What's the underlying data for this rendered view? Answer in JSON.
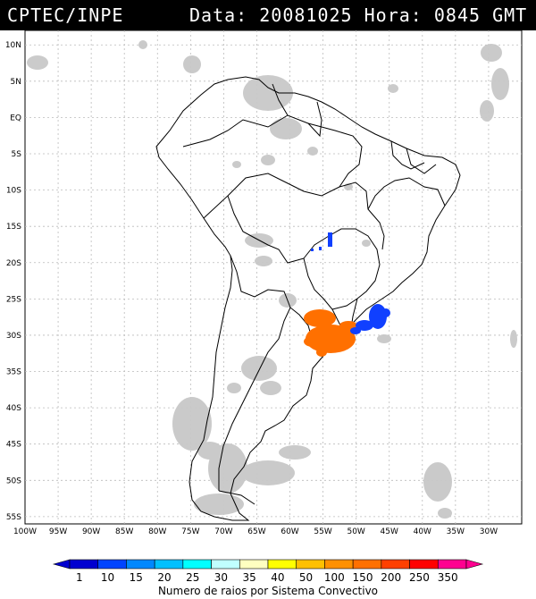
{
  "header": {
    "left": "CPTEC/INPE",
    "right": "Data: 20081025 Hora: 0845 GMT"
  },
  "map": {
    "region": "South America",
    "lon_range": [
      -100,
      -25
    ],
    "lat_range": [
      -56,
      12
    ],
    "lat_ticks": [
      "10N",
      "5N",
      "EQ",
      "5S",
      "10S",
      "15S",
      "20S",
      "25S",
      "30S",
      "35S",
      "40S",
      "45S",
      "50S",
      "55S"
    ],
    "lon_ticks": [
      "100W",
      "95W",
      "90W",
      "85W",
      "80W",
      "75W",
      "70W",
      "65W",
      "60W",
      "55W",
      "50W",
      "45W",
      "40W",
      "35W",
      "30W"
    ],
    "cloud_color": "#c8c8c8",
    "features": [
      {
        "name": "lightning-cluster-south-brazil",
        "color": "#ff7000",
        "value": "200"
      },
      {
        "name": "lightning-cluster-santa-catarina",
        "color": "#1040ff",
        "value": "1"
      },
      {
        "name": "lightning-cluster-mato-grosso-do-sul",
        "color": "#1040ff",
        "value": "1"
      }
    ]
  },
  "colorbar": {
    "title": "Numero de raios por Sistema Convectivo",
    "levels": [
      "1",
      "10",
      "15",
      "20",
      "25",
      "30",
      "35",
      "40",
      "50",
      "100",
      "150",
      "200",
      "250",
      "350"
    ],
    "colors": [
      "#0000d0",
      "#0044ff",
      "#0088ff",
      "#00c0ff",
      "#00ffff",
      "#c0ffff",
      "#ffffc0",
      "#ffff00",
      "#ffc000",
      "#ff9000",
      "#ff7000",
      "#ff4000",
      "#ff0000",
      "#ff0090"
    ]
  }
}
